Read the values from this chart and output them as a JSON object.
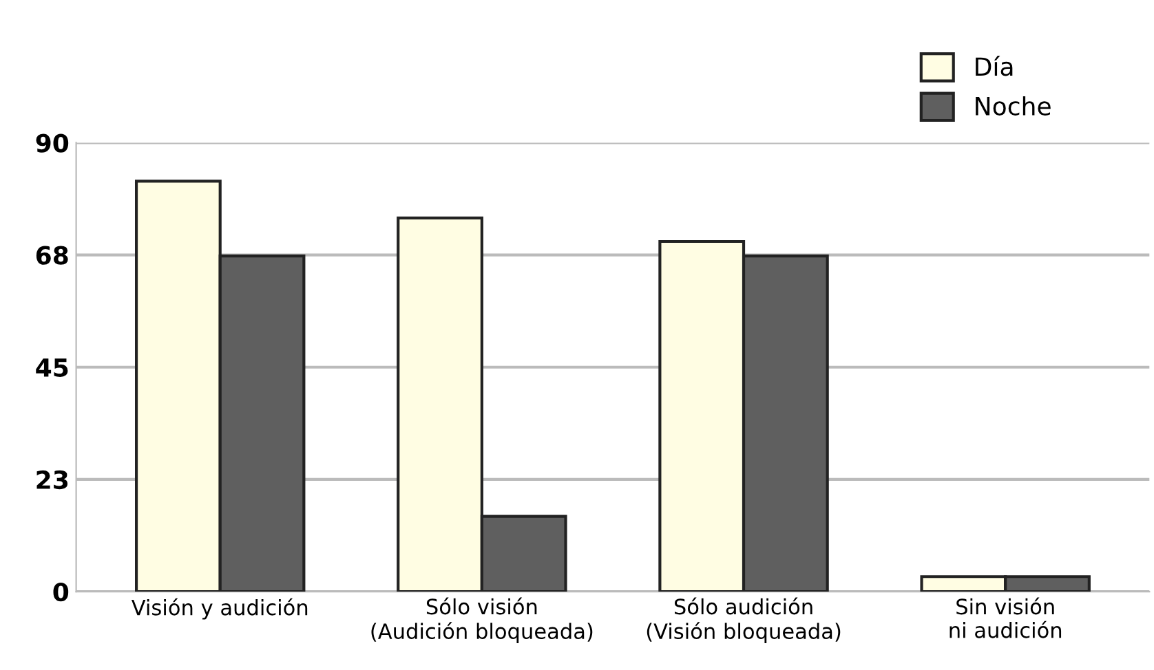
{
  "chart_data": {
    "type": "bar",
    "categories": [
      "Visión y audición",
      "Sólo visión\n(Audición bloqueada)",
      "Sólo audición\n(Visión bloqueada)",
      "Sin visión\nni audición"
    ],
    "series": [
      {
        "name": "Día",
        "color": "#fffde3",
        "values": [
          82.3,
          74.9,
          70.2,
          3.0
        ]
      },
      {
        "name": "Noche",
        "color": "#5f5f5f",
        "values": [
          67.3,
          15.1,
          67.3,
          3.0
        ]
      }
    ],
    "ylim": [
      0,
      90
    ],
    "yticks": [
      0,
      {
        "value": 22.5,
        "label": "23"
      },
      45,
      {
        "value": 67.5,
        "label": "68"
      },
      90
    ],
    "grid": "y",
    "legend": "top right"
  }
}
